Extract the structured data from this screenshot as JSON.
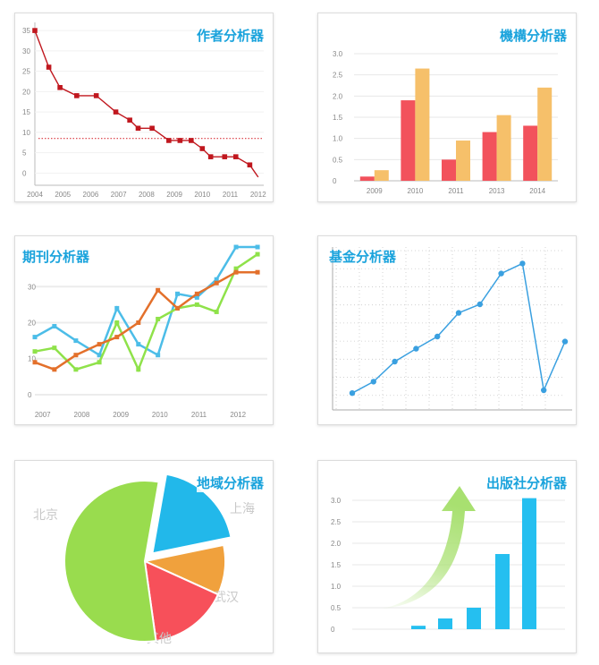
{
  "panels": [
    {
      "title": "作者分析器"
    },
    {
      "title": "機構分析器"
    },
    {
      "title": "期刊分析器"
    },
    {
      "title": "基金分析器"
    },
    {
      "title": "地域分析器"
    },
    {
      "title": "出版社分析器"
    }
  ],
  "chart_data": [
    {
      "type": "line",
      "title": "作者分析器",
      "x_ticks": [
        "2004",
        "2005",
        "2006",
        "2007",
        "2008",
        "2009",
        "2010",
        "2011",
        "2012"
      ],
      "y_ticks": [
        "35",
        "30",
        "25",
        "20",
        "15",
        "10",
        "5",
        "0"
      ],
      "ylim": [
        -3,
        37
      ],
      "xlim": [
        2004,
        2012.2
      ],
      "x": [
        2004.0,
        2004.5,
        2004.9,
        2005.5,
        2006.2,
        2006.9,
        2007.4,
        2007.7,
        2008.2,
        2008.8,
        2009.2,
        2009.6,
        2010.0,
        2010.3,
        2010.8,
        2011.2,
        2011.7,
        2012.0
      ],
      "values": [
        35,
        26,
        21,
        19,
        19,
        15,
        13,
        11,
        11,
        8,
        8,
        8,
        6,
        4,
        4,
        4,
        2,
        -1
      ],
      "reference_line": 8.5,
      "color": "#c0171e"
    },
    {
      "type": "bar",
      "title": "機構分析器",
      "categories": [
        "2009",
        "2010",
        "2011",
        "2013",
        "2014"
      ],
      "y_ticks": [
        "3.0",
        "2.5",
        "2.0",
        "1.5",
        "1.0",
        "0.5",
        "0"
      ],
      "ylim": [
        0,
        3
      ],
      "series": [
        {
          "values": [
            0.1,
            1.9,
            0.5,
            1.15,
            1.3
          ],
          "color": "#f2525c"
        },
        {
          "values": [
            0.25,
            2.65,
            0.95,
            1.55,
            2.2
          ],
          "color": "#f6c06a"
        }
      ]
    },
    {
      "type": "line",
      "title": "期刊分析器",
      "x_ticks": [
        "2007",
        "2008",
        "2009",
        "2010",
        "2011",
        "2012"
      ],
      "y_ticks": [
        "30",
        "20",
        "10",
        "0"
      ],
      "ylim": [
        -2,
        42
      ],
      "xlim": [
        2006.8,
        2012.75
      ],
      "x": [
        2006.8,
        2007.3,
        2007.85,
        2008.45,
        2008.9,
        2009.45,
        2009.95,
        2010.45,
        2010.95,
        2011.45,
        2011.95,
        2012.5
      ],
      "series": [
        {
          "values": [
            16,
            19,
            15,
            11,
            24,
            14,
            11,
            28,
            27,
            32,
            41,
            41
          ],
          "color": "#4cbde8"
        },
        {
          "values": [
            12,
            13,
            7,
            9,
            20,
            7,
            21,
            24,
            25,
            23,
            35,
            39
          ],
          "color": "#8fe24a"
        },
        {
          "values": [
            9,
            7,
            11,
            14,
            16,
            20,
            29,
            24,
            28,
            31,
            34,
            34
          ],
          "color": "#e3702b"
        }
      ]
    },
    {
      "type": "line",
      "title": "基金分析器",
      "x": [
        0,
        1,
        2,
        3,
        4,
        5,
        6,
        7,
        8,
        9,
        10
      ],
      "values": [
        0.1,
        1.7,
        4.5,
        6.3,
        8.0,
        11.3,
        12.5,
        16.8,
        18.2,
        0.5,
        7.3
      ],
      "ylim": [
        0,
        20
      ],
      "color": "#3aa0e0"
    },
    {
      "type": "pie",
      "title": "地域分析器",
      "slices": [
        {
          "label": "上海",
          "value": 19,
          "color": "#22b8ea"
        },
        {
          "label": "武汉",
          "value": 10,
          "color": "#f0a13d"
        },
        {
          "label": "其他",
          "value": 16,
          "color": "#f7505a"
        },
        {
          "label": "北京",
          "value": 55,
          "color": "#99dc4e"
        }
      ]
    },
    {
      "type": "bar",
      "title": "出版社分析器",
      "categories": [
        "",
        "",
        "",
        "",
        ""
      ],
      "values": [
        0.08,
        0.25,
        0.5,
        1.75,
        3.05
      ],
      "y_ticks": [
        "3.0",
        "2.5",
        "2.0",
        "1.5",
        "1.0",
        "0.5",
        "0"
      ],
      "ylim": [
        0,
        3
      ],
      "color": "#25bff0",
      "arrow_color": "#a8e070"
    }
  ]
}
